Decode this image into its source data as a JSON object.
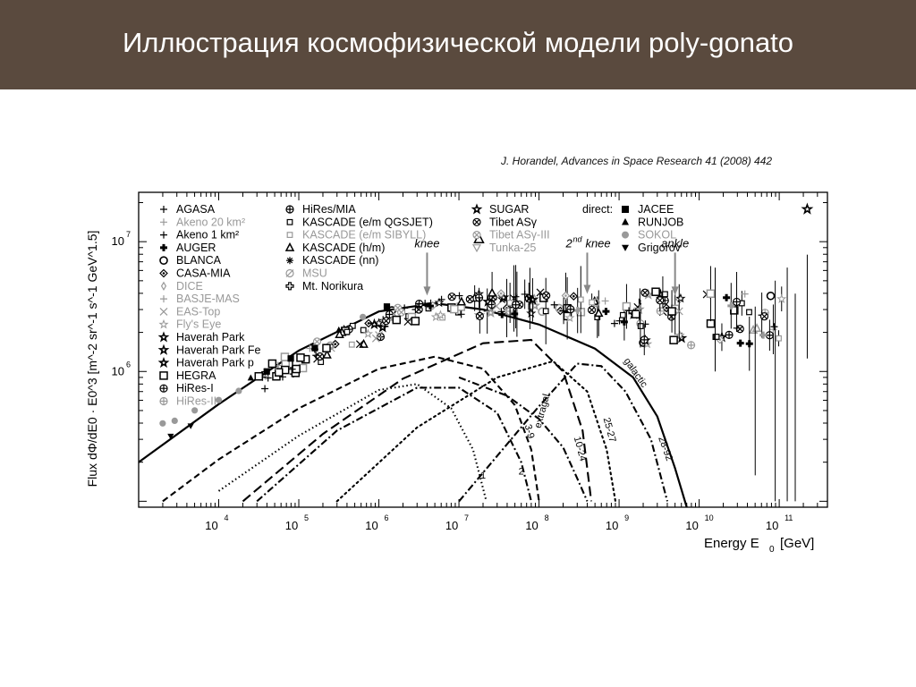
{
  "slide": {
    "title": "Иллюстрация космофизической модели poly-gonato",
    "citation": "J. Horandel, Advances in Space Research 41 (2008) 442"
  },
  "chart_data": {
    "type": "scatter",
    "xlabel": "Energy E",
    "xlabel_sub": "0",
    "xlabel_unit": "[GeV]",
    "ylabel": "Flux dΦ/dE0 · E0^3 [m^-2 sr^-1 s^-1 GeV^1.5]",
    "x_scale": "log",
    "y_scale": "log",
    "xlim": [
      1000,
      400000000000
    ],
    "ylim": [
      90000,
      24000000
    ],
    "x_ticks": [
      {
        "value": 10000,
        "base": "10",
        "exp": "4"
      },
      {
        "value": 100000,
        "base": "10",
        "exp": "5"
      },
      {
        "value": 1000000,
        "base": "10",
        "exp": "6"
      },
      {
        "value": 10000000,
        "base": "10",
        "exp": "7"
      },
      {
        "value": 100000000,
        "base": "10",
        "exp": "8"
      },
      {
        "value": 1000000000,
        "base": "10",
        "exp": "9"
      },
      {
        "value": 10000000000,
        "base": "10",
        "exp": "10"
      },
      {
        "value": 100000000000,
        "base": "10",
        "exp": "11"
      }
    ],
    "y_ticks": [
      {
        "value": 1000000,
        "base": "10",
        "exp": "6"
      },
      {
        "value": 10000000,
        "base": "10",
        "exp": "7"
      }
    ],
    "annotations": [
      {
        "text": "knee",
        "x": 4000000,
        "y": 8500000,
        "arrow_to": 3500000
      },
      {
        "text": "2nd knee",
        "x": 400000000,
        "y": 8500000,
        "arrow_to": 3600000
      },
      {
        "text": "ankle",
        "x": 5000000000,
        "y": 8500000,
        "arrow_to": 3500000
      }
    ],
    "curve_labels": [
      {
        "text": "1",
        "x": 20000000,
        "y": 150000,
        "rotate": 0
      },
      {
        "text": "2",
        "x": 60000000,
        "y": 160000,
        "rotate": 0
      },
      {
        "text": "3-9",
        "x": 70000000,
        "y": 340000,
        "rotate": 75
      },
      {
        "text": "extragal.",
        "x": 120000000,
        "y": 500000,
        "rotate": -75
      },
      {
        "text": "10-24",
        "x": 300000000,
        "y": 250000,
        "rotate": 75
      },
      {
        "text": "25-27",
        "x": 700000000,
        "y": 350000,
        "rotate": 75
      },
      {
        "text": "28-92",
        "x": 3500000000,
        "y": 250000,
        "rotate": 70
      },
      {
        "text": "galactic",
        "x": 1500000000,
        "y": 950000,
        "rotate": 55
      }
    ],
    "legend": {
      "col1": [
        {
          "label": "AGASA",
          "marker": "plus",
          "gray": false
        },
        {
          "label": "Akeno 20 km²",
          "marker": "plus",
          "gray": true
        },
        {
          "label": "Akeno 1 km²",
          "marker": "plus",
          "gray": false
        },
        {
          "label": "AUGER",
          "marker": "boldplus",
          "gray": false
        },
        {
          "label": "BLANCA",
          "marker": "circle",
          "gray": false
        },
        {
          "label": "CASA-MIA",
          "marker": "diamond",
          "gray": false
        },
        {
          "label": "DICE",
          "marker": "diamond-open",
          "gray": true
        },
        {
          "label": "BASJE-MAS",
          "marker": "plus",
          "gray": true
        },
        {
          "label": "EAS-Top",
          "marker": "cross",
          "gray": true
        },
        {
          "label": "Fly's Eye",
          "marker": "star-open",
          "gray": true
        },
        {
          "label": "Haverah Park",
          "marker": "star",
          "gray": false
        },
        {
          "label": "Haverah Park Fe",
          "marker": "star",
          "gray": false
        },
        {
          "label": "Haverah Park p",
          "marker": "star",
          "gray": false
        },
        {
          "label": "HEGRA",
          "marker": "square",
          "gray": false
        },
        {
          "label": "HiRes-I",
          "marker": "oplus",
          "gray": false
        },
        {
          "label": "HiRes-II",
          "marker": "oplus",
          "gray": true
        }
      ],
      "col2": [
        {
          "label": "HiRes/MIA",
          "marker": "oplus",
          "gray": false
        },
        {
          "label": "KASCADE (e/m QGSJET)",
          "marker": "square-small",
          "gray": false
        },
        {
          "label": "KASCADE (e/m SIBYLL)",
          "marker": "square-small",
          "gray": true
        },
        {
          "label": "KASCADE (h/m)",
          "marker": "triangle-open",
          "gray": false
        },
        {
          "label": "KASCADE (nn)",
          "marker": "snow",
          "gray": false
        },
        {
          "label": "MSU",
          "marker": "slash-circle",
          "gray": true
        },
        {
          "label": "Mt. Norikura",
          "marker": "boldplus-open",
          "gray": false
        }
      ],
      "col3": [
        {
          "label": "SUGAR",
          "marker": "star",
          "gray": false
        },
        {
          "label": "Tibet ASγ",
          "marker": "otimes",
          "gray": false
        },
        {
          "label": "Tibet ASγ-III",
          "marker": "otimes",
          "gray": true
        },
        {
          "label": "Tunka-25",
          "marker": "triangle-down-open",
          "gray": true
        }
      ],
      "col4_header": "direct:",
      "col4": [
        {
          "label": "JACEE",
          "marker": "square-filled",
          "gray": false
        },
        {
          "label": "RUNJOB",
          "marker": "triangle-filled",
          "gray": false
        },
        {
          "label": "SOKOL",
          "marker": "circle-filled",
          "gray": true
        },
        {
          "label": "Grigorov",
          "marker": "triangle-down-filled",
          "gray": false
        }
      ]
    },
    "model_curves": [
      {
        "name": "galactic",
        "style": "solid",
        "points": [
          [
            1000,
            200000
          ],
          [
            10000,
            560000
          ],
          [
            100000,
            1450000
          ],
          [
            1000000,
            2900000
          ],
          [
            5000000,
            3350000
          ],
          [
            20000000,
            3000000
          ],
          [
            100000000,
            2300000
          ],
          [
            500000000,
            1500000
          ],
          [
            1500000000,
            900000
          ],
          [
            3000000000,
            450000
          ],
          [
            5000000000,
            180000
          ],
          [
            7000000000,
            90000
          ]
        ]
      },
      {
        "name": "1",
        "style": "dotted",
        "points": [
          [
            10000,
            120000
          ],
          [
            100000,
            320000
          ],
          [
            1000000,
            720000
          ],
          [
            3000000,
            800000
          ],
          [
            8000000,
            520000
          ],
          [
            15000000,
            250000
          ],
          [
            22000000,
            100000
          ]
        ]
      },
      {
        "name": "2",
        "style": "dashdot",
        "points": [
          [
            30000,
            100000
          ],
          [
            300000,
            350000
          ],
          [
            3000000,
            750000
          ],
          [
            10000000,
            750000
          ],
          [
            30000000,
            480000
          ],
          [
            60000000,
            200000
          ],
          [
            80000000,
            100000
          ]
        ]
      },
      {
        "name": "3-9",
        "style": "dashed",
        "points": [
          [
            2000,
            100000
          ],
          [
            10000,
            210000
          ],
          [
            100000,
            520000
          ],
          [
            1000000,
            1050000
          ],
          [
            5000000,
            1300000
          ],
          [
            20000000,
            1050000
          ],
          [
            50000000,
            550000
          ],
          [
            80000000,
            250000
          ],
          [
            100000000,
            100000
          ]
        ]
      },
      {
        "name": "10-24",
        "style": "longdash",
        "points": [
          [
            20000,
            100000
          ],
          [
            200000,
            330000
          ],
          [
            2000000,
            880000
          ],
          [
            20000000,
            1650000
          ],
          [
            80000000,
            1750000
          ],
          [
            200000000,
            1000000
          ],
          [
            350000000,
            350000
          ],
          [
            450000000,
            100000
          ]
        ]
      },
      {
        "name": "25-27",
        "style": "densedot",
        "points": [
          [
            300000,
            100000
          ],
          [
            3000000,
            370000
          ],
          [
            30000000,
            900000
          ],
          [
            150000000,
            1200000
          ],
          [
            400000000,
            700000
          ],
          [
            700000000,
            250000
          ],
          [
            900000000,
            100000
          ]
        ]
      },
      {
        "name": "28-92",
        "style": "dashdot",
        "points": [
          [
            10000000,
            100000
          ],
          [
            100000000,
            540000
          ],
          [
            300000000,
            1150000
          ],
          [
            600000000,
            1100000
          ],
          [
            1200000000,
            700000
          ],
          [
            2500000000,
            300000
          ],
          [
            4000000000,
            100000
          ]
        ]
      },
      {
        "name": "extragal.",
        "style": "dashdot",
        "points": [
          [
            10000000,
            900000
          ],
          [
            40000000,
            650000
          ],
          [
            100000000,
            430000
          ],
          [
            200000000,
            260000
          ],
          [
            300000000,
            150000
          ],
          [
            400000000,
            100000
          ]
        ]
      }
    ]
  }
}
